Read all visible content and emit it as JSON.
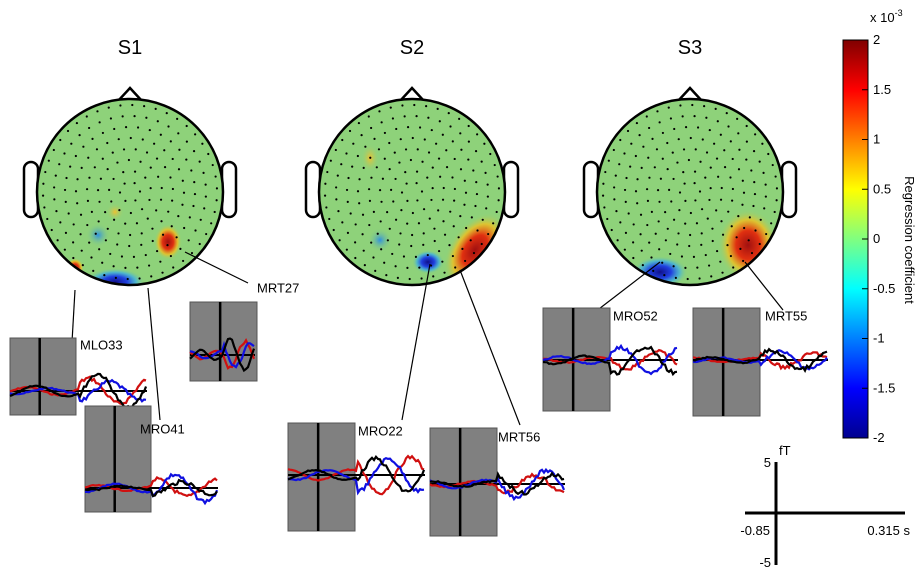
{
  "panels": [
    {
      "title": "S1",
      "sensors": [
        "MLO33",
        "MRT27",
        "MRO41"
      ]
    },
    {
      "title": "S2",
      "sensors": [
        "MRO22",
        "MRT56"
      ]
    },
    {
      "title": "S3",
      "sensors": [
        "MRO52",
        "MRT55"
      ]
    }
  ],
  "colorbar": {
    "label": "Regression coefficient",
    "multiplier": "x 10",
    "exponent": "-3",
    "lim": [
      -2,
      2
    ],
    "ticks": [
      -2,
      -1.5,
      -1,
      -0.5,
      0,
      0.5,
      1,
      1.5,
      2
    ]
  },
  "scale_bar": {
    "y_unit": "fT",
    "yticks": [
      -5,
      5
    ],
    "xticks": [
      -0.85,
      {
        "value": 0.315,
        "label": "0.315 s"
      }
    ]
  }
}
